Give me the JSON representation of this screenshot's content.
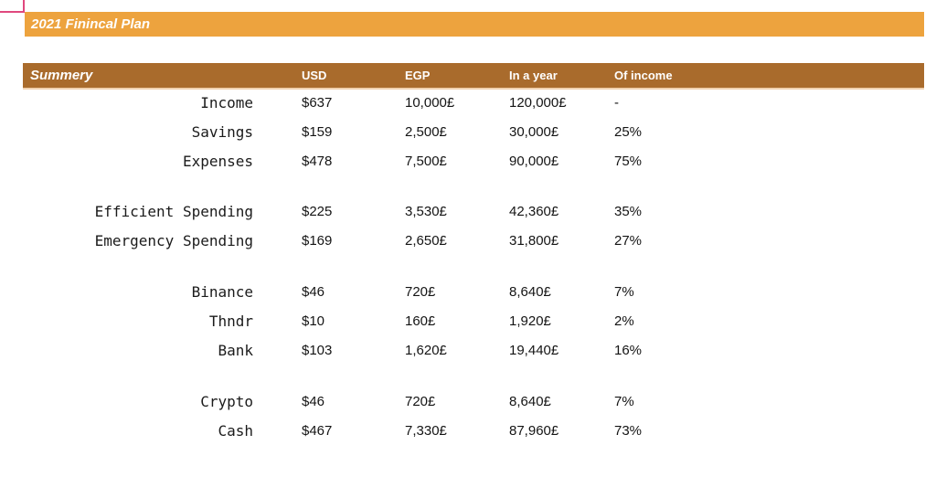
{
  "colors": {
    "title-bar": "#eda33e",
    "header-bar": "#a96b2c",
    "crop-mark": "#e0487e"
  },
  "page": {
    "title": "2021 Finincal Plan"
  },
  "table": {
    "title": "Summery",
    "columns": [
      "USD",
      "EGP",
      "In a year",
      "Of income"
    ],
    "rows": [
      {
        "label": "Income",
        "usd": "$637",
        "egp": "10,000£",
        "year": "120,000£",
        "pct": "-"
      },
      {
        "label": "Savings",
        "usd": "$159",
        "egp": "2,500£",
        "year": "30,000£",
        "pct": "25%"
      },
      {
        "label": "Expenses",
        "usd": "$478",
        "egp": "7,500£",
        "year": "90,000£",
        "pct": "75%"
      },
      {
        "label": "Efficient Spending",
        "usd": "$225",
        "egp": "3,530£",
        "year": "42,360£",
        "pct": "35%"
      },
      {
        "label": "Emergency Spending",
        "usd": "$169",
        "egp": "2,650£",
        "year": "31,800£",
        "pct": "27%"
      },
      {
        "label": "Binance",
        "usd": "$46",
        "egp": "720£",
        "year": "8,640£",
        "pct": "7%"
      },
      {
        "label": "Thndr",
        "usd": "$10",
        "egp": "160£",
        "year": "1,920£",
        "pct": "2%"
      },
      {
        "label": "Bank",
        "usd": "$103",
        "egp": "1,620£",
        "year": "19,440£",
        "pct": "16%"
      },
      {
        "label": "Crypto",
        "usd": "$46",
        "egp": "720£",
        "year": "8,640£",
        "pct": "7%"
      },
      {
        "label": "Cash",
        "usd": "$467",
        "egp": "7,330£",
        "year": "87,960£",
        "pct": "73%"
      }
    ]
  }
}
